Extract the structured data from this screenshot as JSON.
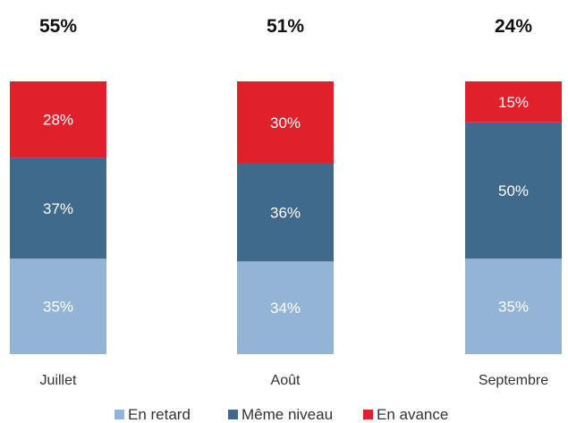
{
  "chart_data": {
    "type": "bar",
    "stacked": true,
    "categories": [
      "Juillet",
      "Août",
      "Septembre"
    ],
    "top_labels": [
      "55%",
      "51%",
      "24%"
    ],
    "series": [
      {
        "name": "En retard",
        "values": [
          35,
          34,
          35
        ],
        "labels": [
          "35%",
          "34%",
          "35%"
        ],
        "color": "#94b4d6"
      },
      {
        "name": "Même niveau",
        "values": [
          37,
          36,
          50
        ],
        "labels": [
          "37%",
          "36%",
          "50%"
        ],
        "color": "#3f6a8c"
      },
      {
        "name": "En avance",
        "values": [
          28,
          30,
          15
        ],
        "labels": [
          "28%",
          "30%",
          "15%"
        ],
        "color": "#e0202a"
      }
    ],
    "ylim": [
      0,
      100
    ],
    "grid": false,
    "legend_position": "bottom"
  }
}
